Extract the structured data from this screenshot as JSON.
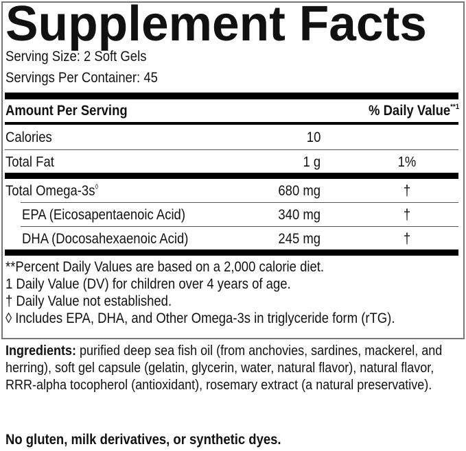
{
  "title": "Supplement Facts",
  "serving_size": "Serving Size: 2 Soft Gels",
  "servings_per_container": "Servings Per Container: 45",
  "header": {
    "amount": "Amount Per Serving",
    "dv": "% Daily Value",
    "dv_mark": "**1"
  },
  "rows": [
    {
      "label": "Calories",
      "amount": "10",
      "dv": ""
    },
    {
      "label": "Total Fat",
      "amount": "1 g",
      "dv": "1%"
    },
    {
      "label": "Total Omega-3s",
      "mark": "◊",
      "amount": "680 mg",
      "dv": "†"
    },
    {
      "label": "EPA (Eicosapentaenoic Acid)",
      "amount": "340 mg",
      "dv": "†"
    },
    {
      "label": "DHA (Docosahexaenoic Acid)",
      "amount": "245 mg",
      "dv": "†"
    }
  ],
  "footnotes": [
    "**Percent Daily Values are based on a 2,000 calorie diet.",
    "1 Daily Value (DV) for children over 4 years of age.",
    "† Daily Value not established.",
    "◊ Includes EPA, DHA, and Other Omega-3s in triglyceride form (rTG)."
  ],
  "ingredients": {
    "label": "Ingredients:",
    "text": " purified deep sea fish oil (from anchovies, sardines, mackerel, and herring), soft gel capsule (gelatin, glycerin, water, natural flavor), natural flavor, RRR-alpha tocopherol (antioxidant), rosemary extract (a natural preservative)."
  },
  "free_from": "No gluten, milk derivatives, or synthetic dyes."
}
